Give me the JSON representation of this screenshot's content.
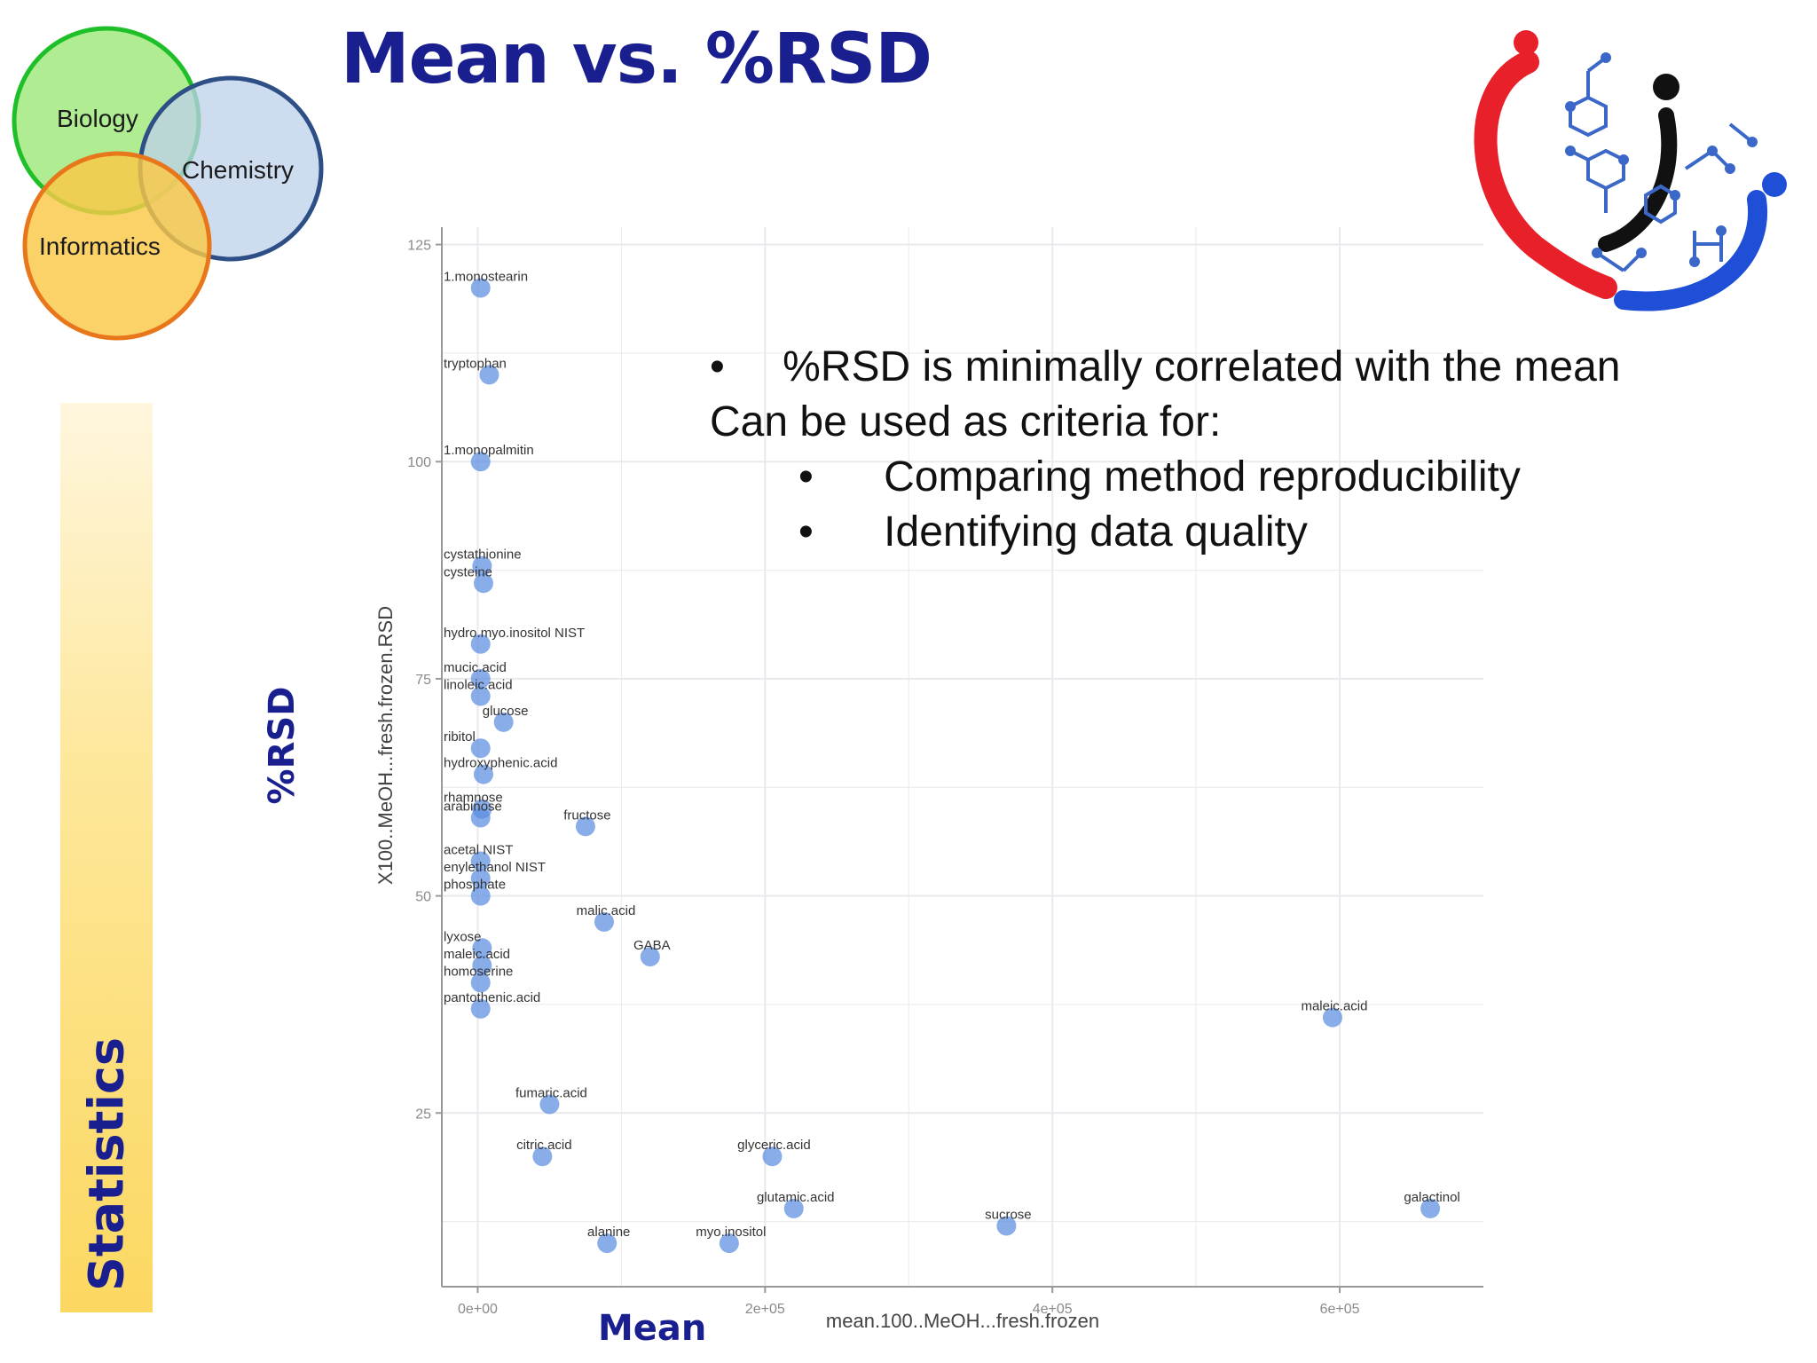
{
  "slide": {
    "title": "Mean vs. %RSD",
    "side_label": "Statistics",
    "y_heading": "%RSD",
    "x_heading": "Mean"
  },
  "venn": {
    "circles": [
      "Biology",
      "Chemistry",
      "Informatics"
    ]
  },
  "bullets": {
    "main": "%RSD is minimally correlated with the mean",
    "lead": "Can be used as criteria for:",
    "sub": [
      "Comparing method reproducibility",
      "Identifying data quality"
    ],
    "bullet_char": "•"
  },
  "logo": {
    "name": "molecule-heart-logo",
    "colors": {
      "red": "#e8202a",
      "black": "#111111",
      "blue": "#1f4fd6"
    }
  },
  "colors": {
    "title": "#1a1f8f",
    "point": "#5b8ee0",
    "axis_text": "#8a8a8a",
    "grid": "#e9e9ee"
  },
  "chart_data": {
    "type": "scatter",
    "xlabel": "mean.100..MeOH...fresh.frozen",
    "ylabel": "X100..MeOH...fresh.frozen.RSD",
    "xlim": [
      -25000,
      700000
    ],
    "ylim": [
      5,
      127
    ],
    "x_ticks": [
      0,
      200000,
      400000,
      600000
    ],
    "x_tick_labels": [
      "0e+00",
      "2e+05",
      "4e+05",
      "6e+05"
    ],
    "y_ticks": [
      25,
      50,
      75,
      100,
      125
    ],
    "y_tick_labels": [
      "25",
      "50",
      "75",
      "100",
      "125"
    ],
    "grid": true,
    "points": [
      {
        "label": "1.monostearin",
        "x": 2000,
        "y": 120
      },
      {
        "label": "tryptophan",
        "x": 8000,
        "y": 110
      },
      {
        "label": "1.monopalmitin",
        "x": 2000,
        "y": 100
      },
      {
        "label": "cystathionine",
        "x": 3000,
        "y": 88
      },
      {
        "label": "cysteine",
        "x": 4000,
        "y": 86
      },
      {
        "label": "hydro.myo.inositol NIST",
        "x": 2000,
        "y": 79
      },
      {
        "label": "mucic.acid",
        "x": 2000,
        "y": 75
      },
      {
        "label": "linoleic.acid",
        "x": 2000,
        "y": 73
      },
      {
        "label": "glucose",
        "x": 18000,
        "y": 70
      },
      {
        "label": "ribitol",
        "x": 2000,
        "y": 67
      },
      {
        "label": "hydroxyphenic.acid",
        "x": 4000,
        "y": 64
      },
      {
        "label": "rhamnose",
        "x": 3000,
        "y": 60
      },
      {
        "label": "arabinose",
        "x": 2000,
        "y": 59
      },
      {
        "label": "fructose",
        "x": 75000,
        "y": 58
      },
      {
        "label": "acetal NIST",
        "x": 2000,
        "y": 54
      },
      {
        "label": "enylethanol NIST",
        "x": 2000,
        "y": 52
      },
      {
        "label": "phosphate",
        "x": 2000,
        "y": 50
      },
      {
        "label": "malic.acid",
        "x": 88000,
        "y": 47
      },
      {
        "label": "GABA",
        "x": 120000,
        "y": 43
      },
      {
        "label": "lyxose",
        "x": 3000,
        "y": 44
      },
      {
        "label": "maleic.acid",
        "x": 3000,
        "y": 42
      },
      {
        "label": "homoserine",
        "x": 2000,
        "y": 40
      },
      {
        "label": "pantothenic.acid",
        "x": 2000,
        "y": 37
      },
      {
        "label": "maleic.acid",
        "x": 595000,
        "y": 36
      },
      {
        "label": "fumaric.acid",
        "x": 50000,
        "y": 26
      },
      {
        "label": "glyceric.acid",
        "x": 205000,
        "y": 20
      },
      {
        "label": "glutamic.acid",
        "x": 220000,
        "y": 14
      },
      {
        "label": "galactinol",
        "x": 663000,
        "y": 14
      },
      {
        "label": "sucrose",
        "x": 368000,
        "y": 12
      },
      {
        "label": "myo.inositol",
        "x": 175000,
        "y": 10
      },
      {
        "label": "alanine",
        "x": 90000,
        "y": 10
      },
      {
        "label": "citric.acid",
        "x": 45000,
        "y": 20
      }
    ]
  }
}
